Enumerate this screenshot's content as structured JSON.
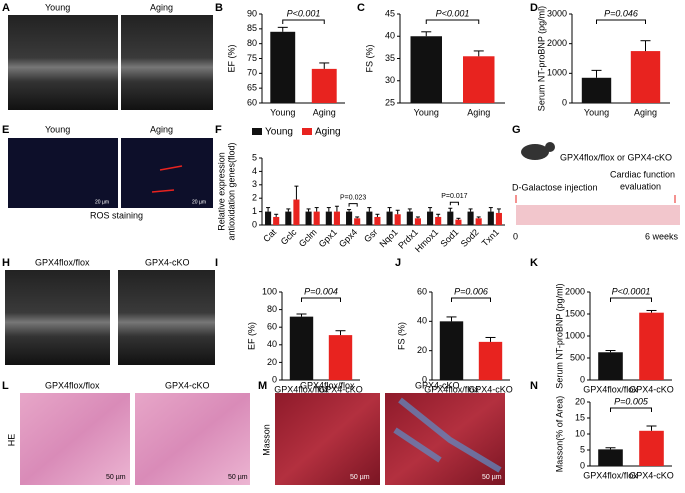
{
  "panel_letters": [
    "A",
    "B",
    "C",
    "D",
    "E",
    "F",
    "G",
    "H",
    "I",
    "J",
    "K",
    "L",
    "M",
    "N"
  ],
  "panel_a": {
    "labels": [
      "Young",
      "Aging"
    ]
  },
  "panel_e": {
    "labels": [
      "Young",
      "Aging"
    ],
    "caption": "ROS staining",
    "scale_bars": [
      "20 µm",
      "20 µm"
    ]
  },
  "panel_g": {
    "group": "GPX4flox/flox or GPX4-cKO",
    "start": "D-Galactose injection",
    "end": [
      "Cardiac function",
      "evaluation"
    ],
    "t0": "0",
    "t1": "6 weeks"
  },
  "panel_h": {
    "labels": [
      "GPX4flox/flox",
      "GPX4-cKO"
    ]
  },
  "panel_l": {
    "labels": [
      "GPX4flox/flox",
      "GPX4-cKO"
    ],
    "side": "HE",
    "scale_bars": [
      "50 µm",
      "50 µm"
    ]
  },
  "panel_m": {
    "labels": [
      "GPX4flox/flox",
      "GPX4-cKO"
    ],
    "side": "Masson",
    "scale_bars": [
      "50 µm",
      "50 µm"
    ]
  },
  "chart_data": [
    {
      "type": "bar",
      "ylabel": "EF (%)",
      "categories": [
        "Young",
        "Aging"
      ],
      "values": [
        84,
        71.5
      ],
      "errors": [
        1.5,
        2
      ],
      "colors": [
        "#111111",
        "#e8231f"
      ],
      "ylim": [
        60,
        90
      ],
      "yticks": [
        60,
        65,
        70,
        75,
        80,
        85,
        90
      ],
      "annotation": "P<0.001"
    },
    {
      "type": "bar",
      "ylabel": "FS (%)",
      "categories": [
        "Young",
        "Aging"
      ],
      "values": [
        40,
        35.5
      ],
      "errors": [
        1,
        1.2
      ],
      "colors": [
        "#111111",
        "#e8231f"
      ],
      "ylim": [
        25,
        45
      ],
      "yticks": [
        25,
        30,
        35,
        40,
        45
      ],
      "annotation": "P<0.001"
    },
    {
      "type": "bar",
      "ylabel": "Serum NT-proBNP (pg/ml)",
      "categories": [
        "Young",
        "Aging"
      ],
      "values": [
        850,
        1750
      ],
      "errors": [
        250,
        350
      ],
      "colors": [
        "#111111",
        "#e8231f"
      ],
      "ylim": [
        0,
        3000
      ],
      "yticks": [
        0,
        1000,
        2000,
        3000
      ],
      "annotation": "P=0.046"
    },
    {
      "type": "grouped_bar",
      "ylabel": [
        "Relative expression",
        "antioxidation genes(flod)"
      ],
      "categories": [
        "Cat",
        "Gclc",
        "Gclm",
        "Gpx1",
        "Gpx4",
        "Gsr",
        "Nqo1",
        "Prdx1",
        "Hmox1",
        "Sod1",
        "Sod2",
        "Txn1"
      ],
      "series": [
        {
          "name": "Young",
          "color": "#111111",
          "values": [
            1,
            1,
            1,
            1,
            1,
            1,
            1,
            1,
            1,
            1,
            1,
            1
          ],
          "errors": [
            0.3,
            0.2,
            0.2,
            0.3,
            0.15,
            0.3,
            0.3,
            0.2,
            0.3,
            0.25,
            0.2,
            0.3
          ]
        },
        {
          "name": "Aging",
          "color": "#e8231f",
          "values": [
            0.6,
            1.9,
            1,
            1,
            0.5,
            0.6,
            0.8,
            0.5,
            0.6,
            0.4,
            0.5,
            0.9
          ],
          "errors": [
            0.2,
            1,
            0.3,
            0.4,
            0.1,
            0.2,
            0.3,
            0.1,
            0.2,
            0.1,
            0.1,
            0.3
          ]
        }
      ],
      "ylim": [
        0,
        5
      ],
      "yticks": [
        0,
        1,
        2,
        3,
        4,
        5
      ],
      "annotations": [
        {
          "text": "P=0.023",
          "category": "Gpx4"
        },
        {
          "text": "P=0.017",
          "category": "Sod1"
        }
      ]
    },
    {
      "type": "bar",
      "ylabel": "EF (%)",
      "categories": [
        "GPX4flox/flox",
        "GPX4-cKO"
      ],
      "values": [
        72,
        51
      ],
      "errors": [
        3,
        5
      ],
      "colors": [
        "#111111",
        "#e8231f"
      ],
      "ylim": [
        0,
        100
      ],
      "yticks": [
        0,
        20,
        40,
        60,
        80,
        100
      ],
      "annotation": "P=0.004"
    },
    {
      "type": "bar",
      "ylabel": "FS (%)",
      "categories": [
        "GPX4flox/flox",
        "GPX4-cKO"
      ],
      "values": [
        40,
        26
      ],
      "errors": [
        3,
        3
      ],
      "colors": [
        "#111111",
        "#e8231f"
      ],
      "ylim": [
        0,
        60
      ],
      "yticks": [
        0,
        20,
        40,
        60
      ],
      "annotation": "P=0.006"
    },
    {
      "type": "bar",
      "ylabel": "Serum NT-proBNP (pg/ml)",
      "categories": [
        "GPX4flox/flox",
        "GPX4-cKO"
      ],
      "values": [
        630,
        1530
      ],
      "errors": [
        40,
        50
      ],
      "colors": [
        "#111111",
        "#e8231f"
      ],
      "ylim": [
        0,
        2000
      ],
      "yticks": [
        0,
        500,
        1000,
        1500,
        2000
      ],
      "annotation": "P<0.0001"
    },
    {
      "type": "bar",
      "ylabel": "Masson(% of Area)",
      "categories": [
        "GPX4flox/flox",
        "GPX4-cKO"
      ],
      "values": [
        5.2,
        11
      ],
      "errors": [
        0.5,
        1.5
      ],
      "colors": [
        "#111111",
        "#e8231f"
      ],
      "ylim": [
        0,
        20
      ],
      "yticks": [
        0,
        5,
        10,
        15,
        20
      ],
      "annotation": "P=0.005"
    }
  ]
}
